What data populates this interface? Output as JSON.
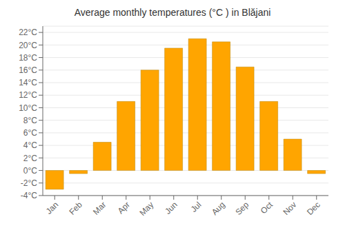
{
  "chart_data": {
    "type": "bar",
    "title": "Average monthly temperatures (°C ) in Blăjani",
    "categories": [
      "Jan",
      "Feb",
      "Mar",
      "Apr",
      "May",
      "Jun",
      "Jul",
      "Aug",
      "Sep",
      "Oct",
      "Nov",
      "Dec"
    ],
    "values": [
      -3.0,
      -0.5,
      4.5,
      11.0,
      16.0,
      19.5,
      21.0,
      20.5,
      16.5,
      11.0,
      5.0,
      -0.5
    ],
    "color": "#FFA500",
    "ylim": [
      -4,
      23
    ],
    "yticks": [
      {
        "value": -4,
        "label": "-4°C"
      },
      {
        "value": -2,
        "label": "-2°C"
      },
      {
        "value": 0,
        "label": "0°C"
      },
      {
        "value": 2,
        "label": "2°C"
      },
      {
        "value": 4,
        "label": "4°C"
      },
      {
        "value": 6,
        "label": "6°C"
      },
      {
        "value": 8,
        "label": "8°C"
      },
      {
        "value": 10,
        "label": "10°C"
      },
      {
        "value": 12,
        "label": "12°C"
      },
      {
        "value": 14,
        "label": "14°C"
      },
      {
        "value": 16,
        "label": "16°C"
      },
      {
        "value": 18,
        "label": "18°C"
      },
      {
        "value": 20,
        "label": "20°C"
      },
      {
        "value": 22,
        "label": "22°C"
      }
    ],
    "grid": true
  }
}
